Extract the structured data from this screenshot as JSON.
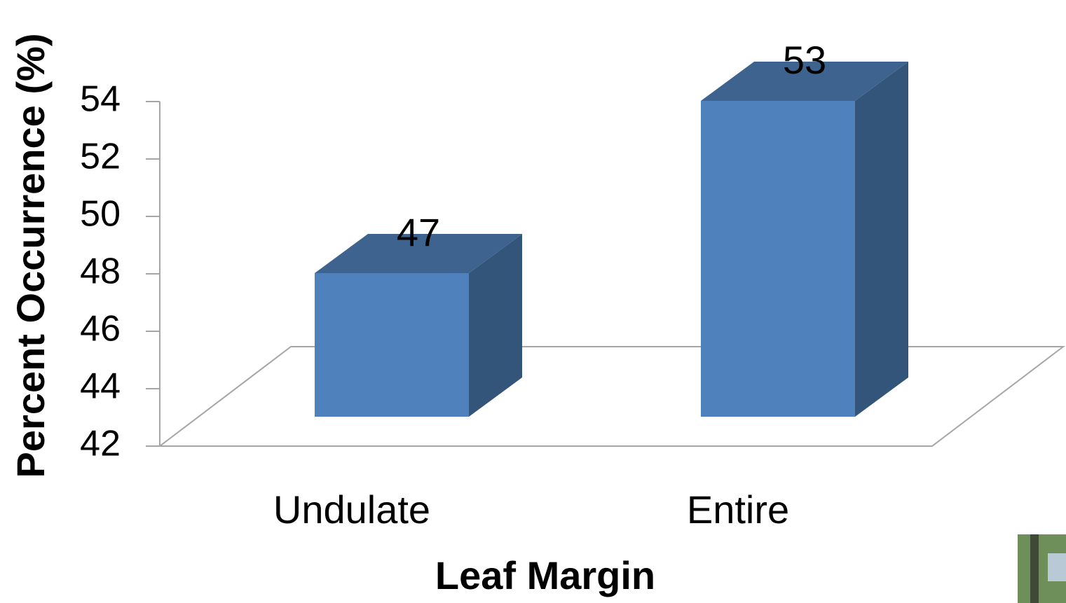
{
  "chart_data": {
    "type": "bar3d",
    "categories": [
      "Undulate",
      "Entire"
    ],
    "values": [
      47,
      53
    ],
    "color": "#4f81bd",
    "xlabel": "Leaf Margin",
    "ylabel": "Percent Occurrence (%)",
    "ylim": [
      42,
      54
    ],
    "yticks": [
      42,
      44,
      46,
      48,
      50,
      52,
      54
    ],
    "grid": false
  }
}
